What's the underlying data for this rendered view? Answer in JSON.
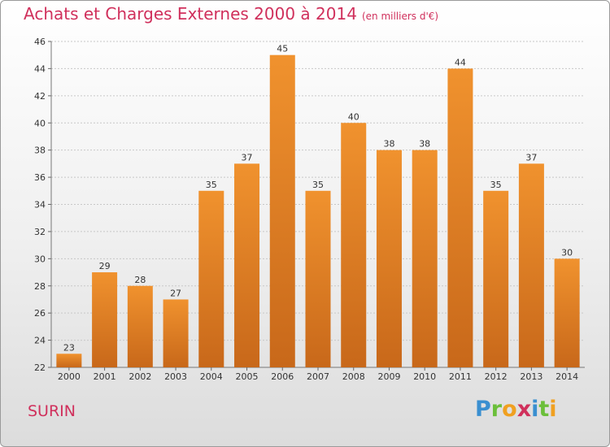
{
  "header": {
    "title": "Achats et Charges Externes 2000 à 2014",
    "subtitle": "(en milliers d'€)"
  },
  "commune": "SURIN",
  "logo": {
    "letters": [
      "P",
      "r",
      "o",
      "x",
      "i",
      "t",
      "i"
    ],
    "colors": [
      "#3a8fd0",
      "#6bbf3a",
      "#f0a020",
      "#d0305c",
      "#3a8fd0",
      "#6bbf3a",
      "#f0a020"
    ]
  },
  "chart_data": {
    "type": "bar",
    "categories": [
      "2000",
      "2001",
      "2002",
      "2003",
      "2004",
      "2005",
      "2006",
      "2007",
      "2008",
      "2009",
      "2010",
      "2011",
      "2012",
      "2013",
      "2014"
    ],
    "values": [
      23,
      29,
      28,
      27,
      35,
      37,
      45,
      35,
      40,
      38,
      38,
      44,
      35,
      37,
      30
    ],
    "ylim": [
      22,
      46
    ],
    "yticks": [
      22,
      24,
      26,
      28,
      30,
      32,
      34,
      36,
      38,
      40,
      42,
      44,
      46
    ],
    "grid": true,
    "bar_color": "#f0922e",
    "bar_color_dark": "#c8681a"
  }
}
